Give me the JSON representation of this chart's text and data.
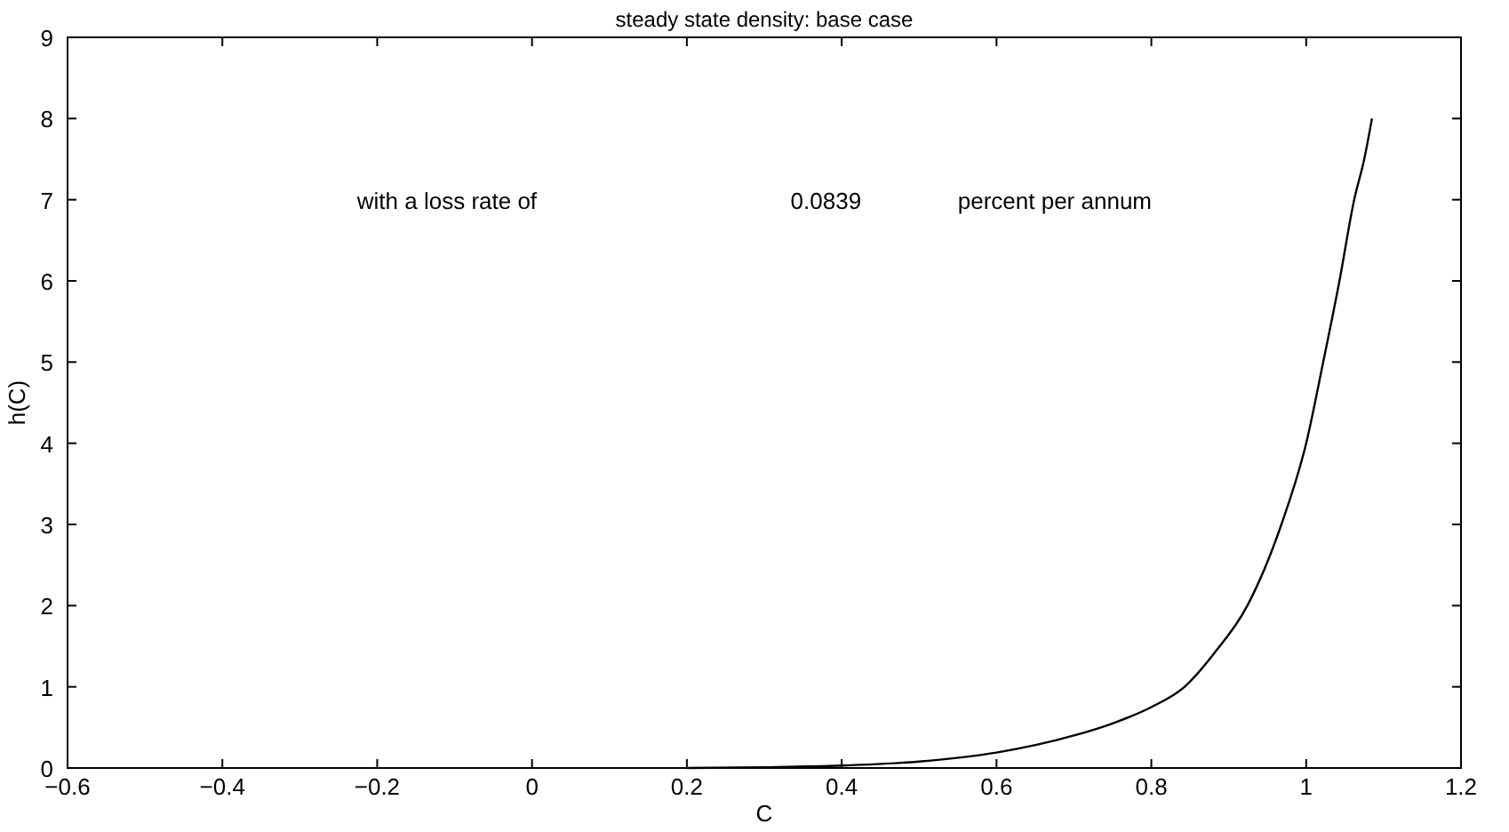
{
  "chart_data": {
    "type": "line",
    "title": "steady state density: base case",
    "xlabel": "C",
    "ylabel": "h(C)",
    "annotations": [
      "with a loss rate of",
      "0.0839",
      "percent per annum"
    ],
    "series": [
      {
        "color": "#000000",
        "x": [
          0.2,
          0.3,
          0.4,
          0.5,
          0.6,
          0.7,
          0.75,
          0.8,
          0.843,
          0.88,
          0.924,
          0.968,
          1.0,
          1.022,
          1.043,
          1.062,
          1.075,
          1.085
        ],
        "values": [
          0,
          0.01,
          0.03,
          0.08,
          0.19,
          0.4,
          0.55,
          0.75,
          1,
          1.4,
          2,
          3,
          4,
          5,
          6,
          7,
          7.5,
          8
        ]
      }
    ],
    "xlim": [
      -0.6,
      1.2
    ],
    "xticks": [
      -0.6,
      -0.4,
      -0.2,
      0,
      0.2,
      0.4,
      0.6,
      0.8,
      1,
      1.2
    ],
    "ylim": [
      0,
      9
    ],
    "yticks": [
      0,
      1,
      2,
      3,
      4,
      5,
      6,
      7,
      8,
      9
    ],
    "grid": false,
    "marker": "none",
    "line_style": "solid"
  }
}
